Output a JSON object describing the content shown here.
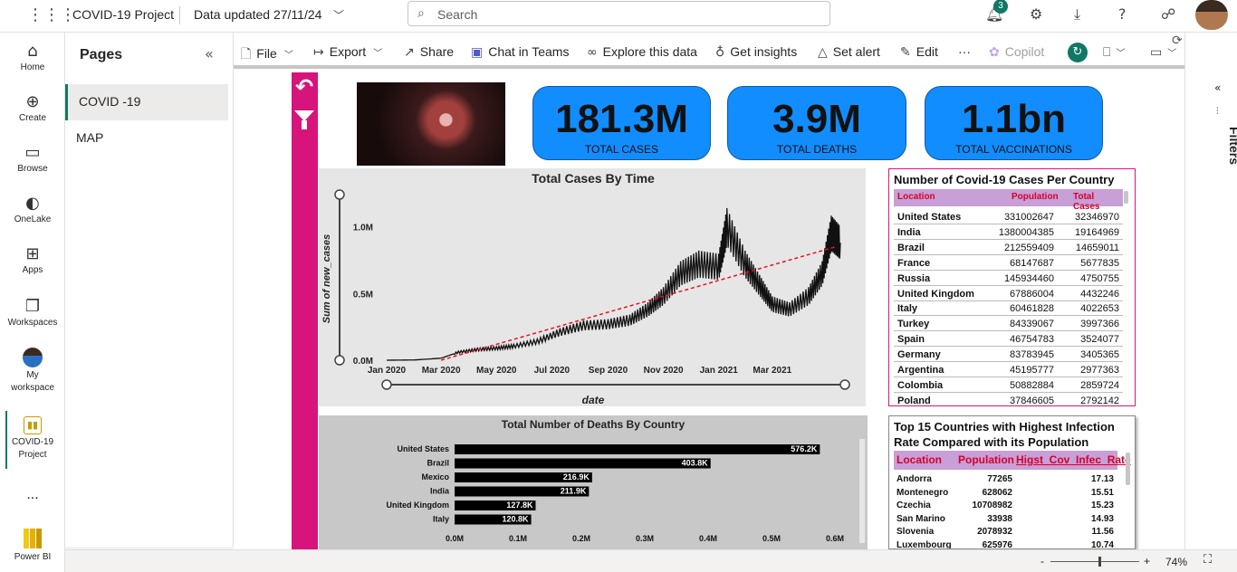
{
  "topbar": {
    "app_title": "COVID-19 Project",
    "data_updated": "Data updated 27/11/24",
    "search_placeholder": "Search",
    "notification_count": "3"
  },
  "rail": {
    "items": [
      {
        "label": "Home",
        "icon": "home-icon"
      },
      {
        "label": "Create",
        "icon": "plus-circle-icon"
      },
      {
        "label": "Browse",
        "icon": "folder-icon"
      },
      {
        "label": "OneLake",
        "icon": "onelake-icon"
      },
      {
        "label": "Apps",
        "icon": "apps-icon"
      },
      {
        "label": "Workspaces",
        "icon": "workspaces-icon"
      },
      {
        "label": "My workspace",
        "icon": "avatar-icon"
      },
      {
        "label": "COVID-19 Project",
        "icon": "report-icon"
      },
      {
        "label": "Power BI",
        "icon": "powerbi-logo-icon"
      }
    ],
    "more_label": "..."
  },
  "pages": {
    "title": "Pages",
    "items": [
      "COVID -19",
      "MAP"
    ],
    "selected": "COVID -19"
  },
  "toolbar": {
    "file": "File",
    "export": "Export",
    "share": "Share",
    "chat": "Chat in Teams",
    "explore": "Explore this data",
    "insights": "Get insights",
    "alert": "Set alert",
    "edit": "Edit",
    "more": "···",
    "copilot": "Copilot"
  },
  "filters_label": "Filters",
  "kpis": [
    {
      "value": "181.3M",
      "label": "TOTAL CASES"
    },
    {
      "value": "3.9M",
      "label": "TOTAL DEATHS"
    },
    {
      "value": "1.1bn",
      "label": "TOTAL VACCINATIONS"
    }
  ],
  "chart_data": [
    {
      "type": "line",
      "title": "Total Cases By Time",
      "xlabel": "date",
      "ylabel": "Sum of new_cases",
      "x_ticks": [
        "Jan 2020",
        "Mar 2020",
        "May 2020",
        "Jul 2020",
        "Sep 2020",
        "Nov 2020",
        "Jan 2021",
        "Mar 2021"
      ],
      "y_ticks": [
        "0.0M",
        "0.5M",
        "1.0M"
      ],
      "ylim": [
        0,
        1200000
      ],
      "series": [
        {
          "x": [
            "2020-01-01",
            "2020-02-01",
            "2020-03-01",
            "2020-03-20",
            "2020-04-10",
            "2020-05-01",
            "2020-05-20",
            "2020-06-15",
            "2020-07-10",
            "2020-08-05",
            "2020-09-01",
            "2020-09-25",
            "2020-10-15",
            "2020-11-01",
            "2020-11-20",
            "2020-12-10",
            "2021-01-01",
            "2021-01-10",
            "2021-01-30",
            "2021-02-15",
            "2021-03-01",
            "2021-03-20",
            "2021-04-10",
            "2021-04-25",
            "2021-05-05",
            "2021-05-15"
          ],
          "y": [
            0,
            2000,
            15000,
            60000,
            80000,
            90000,
            105000,
            140000,
            210000,
            260000,
            270000,
            300000,
            380000,
            480000,
            650000,
            720000,
            700000,
            1000000,
            720000,
            560000,
            420000,
            380000,
            480000,
            650000,
            950000,
            880000
          ]
        }
      ],
      "trendline": {
        "style": "dashed",
        "color": "#e81123"
      }
    },
    {
      "type": "bar",
      "orientation": "horizontal",
      "title": "Total Number of Deaths By Country",
      "categories": [
        "United States",
        "Brazil",
        "Mexico",
        "India",
        "United Kingdom",
        "Italy"
      ],
      "values": [
        576200,
        403800,
        216900,
        211900,
        127800,
        120800
      ],
      "data_labels": [
        "576.2K",
        "403.8K",
        "216.9K",
        "211.9K",
        "127.8K",
        "120.8K"
      ],
      "x_ticks": [
        "0.0M",
        "0.1M",
        "0.2M",
        "0.3M",
        "0.4M",
        "0.5M",
        "0.6M"
      ],
      "xlim": [
        0,
        600000
      ]
    }
  ],
  "table1": {
    "title": "Number of Covid-19 Cases Per Country",
    "columns": [
      "Location",
      "Population",
      "Total Cases"
    ],
    "rows": [
      [
        "United States",
        "331002647",
        "32346970"
      ],
      [
        "India",
        "1380004385",
        "19164969"
      ],
      [
        "Brazil",
        "212559409",
        "14659011"
      ],
      [
        "France",
        "68147687",
        "5677835"
      ],
      [
        "Russia",
        "145934460",
        "4750755"
      ],
      [
        "United Kingdom",
        "67886004",
        "4432246"
      ],
      [
        "Italy",
        "60461828",
        "4022653"
      ],
      [
        "Turkey",
        "84339067",
        "3997366"
      ],
      [
        "Spain",
        "46754783",
        "3524077"
      ],
      [
        "Germany",
        "83783945",
        "3405365"
      ],
      [
        "Argentina",
        "45195777",
        "2977363"
      ],
      [
        "Colombia",
        "50882884",
        "2859724"
      ],
      [
        "Poland",
        "37846605",
        "2792142"
      ]
    ]
  },
  "table2": {
    "title": "Top 15 Countries with Highest Infection Rate Compared with its Population",
    "columns": [
      "Location",
      "Population",
      "Higst_Cov_Infec_Rate"
    ],
    "rows": [
      [
        "Andorra",
        "77265",
        "17.13"
      ],
      [
        "Montenegro",
        "628062",
        "15.51"
      ],
      [
        "Czechia",
        "10708982",
        "15.23"
      ],
      [
        "San Marino",
        "33938",
        "14.93"
      ],
      [
        "Slovenia",
        "2078932",
        "11.56"
      ],
      [
        "Luxembourg",
        "625976",
        "10.74"
      ]
    ]
  },
  "status": {
    "zoom": "74%",
    "zoom_level": 0.74
  }
}
